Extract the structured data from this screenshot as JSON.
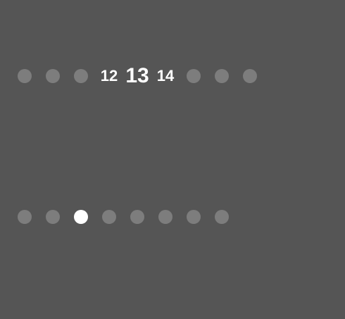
{
  "numbered_pager": {
    "pages": [
      {
        "type": "dot"
      },
      {
        "type": "dot"
      },
      {
        "type": "dot"
      },
      {
        "type": "number",
        "label": "12",
        "size": "near"
      },
      {
        "type": "number",
        "label": "13",
        "size": "current"
      },
      {
        "type": "number",
        "label": "14",
        "size": "near"
      },
      {
        "type": "dot"
      },
      {
        "type": "dot"
      },
      {
        "type": "dot"
      }
    ]
  },
  "dot_pager": {
    "count": 8,
    "active_index": 2
  },
  "colors": {
    "background": "#555555",
    "dot_inactive": "#7d7d7d",
    "dot_active": "#ffffff",
    "text": "#ffffff"
  }
}
